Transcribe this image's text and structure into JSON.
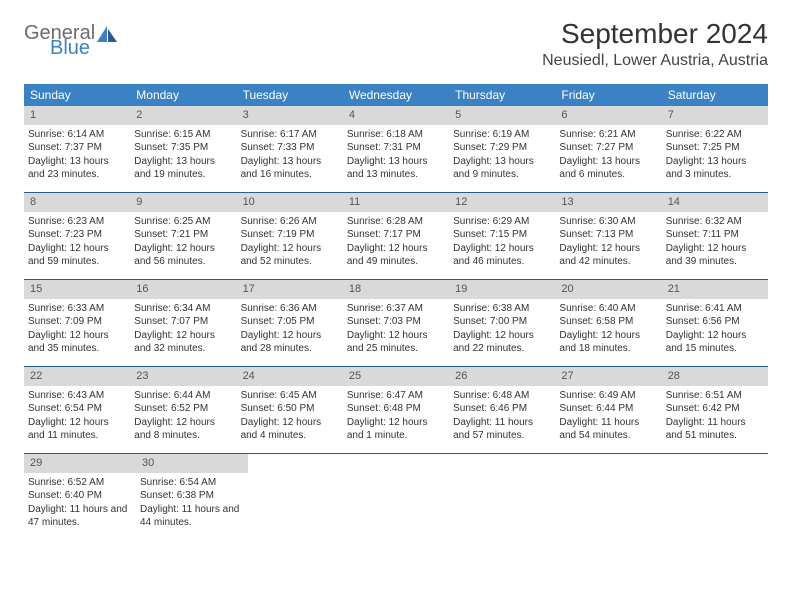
{
  "logo": {
    "word1": "General",
    "word2": "Blue",
    "color_gray": "#6c6c6c",
    "color_blue": "#3b82c4"
  },
  "title": "September 2024",
  "location": "Neusiedl, Lower Austria, Austria",
  "calendar": {
    "header_bg": "#3b82c4",
    "header_text_color": "#ffffff",
    "daynum_bg": "#d9d9d9",
    "border_color": "#2c5a8a",
    "weekdays": [
      "Sunday",
      "Monday",
      "Tuesday",
      "Wednesday",
      "Thursday",
      "Friday",
      "Saturday"
    ],
    "days": [
      {
        "n": 1,
        "sunrise": "6:14 AM",
        "sunset": "7:37 PM",
        "daylight": "13 hours and 23 minutes."
      },
      {
        "n": 2,
        "sunrise": "6:15 AM",
        "sunset": "7:35 PM",
        "daylight": "13 hours and 19 minutes."
      },
      {
        "n": 3,
        "sunrise": "6:17 AM",
        "sunset": "7:33 PM",
        "daylight": "13 hours and 16 minutes."
      },
      {
        "n": 4,
        "sunrise": "6:18 AM",
        "sunset": "7:31 PM",
        "daylight": "13 hours and 13 minutes."
      },
      {
        "n": 5,
        "sunrise": "6:19 AM",
        "sunset": "7:29 PM",
        "daylight": "13 hours and 9 minutes."
      },
      {
        "n": 6,
        "sunrise": "6:21 AM",
        "sunset": "7:27 PM",
        "daylight": "13 hours and 6 minutes."
      },
      {
        "n": 7,
        "sunrise": "6:22 AM",
        "sunset": "7:25 PM",
        "daylight": "13 hours and 3 minutes."
      },
      {
        "n": 8,
        "sunrise": "6:23 AM",
        "sunset": "7:23 PM",
        "daylight": "12 hours and 59 minutes."
      },
      {
        "n": 9,
        "sunrise": "6:25 AM",
        "sunset": "7:21 PM",
        "daylight": "12 hours and 56 minutes."
      },
      {
        "n": 10,
        "sunrise": "6:26 AM",
        "sunset": "7:19 PM",
        "daylight": "12 hours and 52 minutes."
      },
      {
        "n": 11,
        "sunrise": "6:28 AM",
        "sunset": "7:17 PM",
        "daylight": "12 hours and 49 minutes."
      },
      {
        "n": 12,
        "sunrise": "6:29 AM",
        "sunset": "7:15 PM",
        "daylight": "12 hours and 46 minutes."
      },
      {
        "n": 13,
        "sunrise": "6:30 AM",
        "sunset": "7:13 PM",
        "daylight": "12 hours and 42 minutes."
      },
      {
        "n": 14,
        "sunrise": "6:32 AM",
        "sunset": "7:11 PM",
        "daylight": "12 hours and 39 minutes."
      },
      {
        "n": 15,
        "sunrise": "6:33 AM",
        "sunset": "7:09 PM",
        "daylight": "12 hours and 35 minutes."
      },
      {
        "n": 16,
        "sunrise": "6:34 AM",
        "sunset": "7:07 PM",
        "daylight": "12 hours and 32 minutes."
      },
      {
        "n": 17,
        "sunrise": "6:36 AM",
        "sunset": "7:05 PM",
        "daylight": "12 hours and 28 minutes."
      },
      {
        "n": 18,
        "sunrise": "6:37 AM",
        "sunset": "7:03 PM",
        "daylight": "12 hours and 25 minutes."
      },
      {
        "n": 19,
        "sunrise": "6:38 AM",
        "sunset": "7:00 PM",
        "daylight": "12 hours and 22 minutes."
      },
      {
        "n": 20,
        "sunrise": "6:40 AM",
        "sunset": "6:58 PM",
        "daylight": "12 hours and 18 minutes."
      },
      {
        "n": 21,
        "sunrise": "6:41 AM",
        "sunset": "6:56 PM",
        "daylight": "12 hours and 15 minutes."
      },
      {
        "n": 22,
        "sunrise": "6:43 AM",
        "sunset": "6:54 PM",
        "daylight": "12 hours and 11 minutes."
      },
      {
        "n": 23,
        "sunrise": "6:44 AM",
        "sunset": "6:52 PM",
        "daylight": "12 hours and 8 minutes."
      },
      {
        "n": 24,
        "sunrise": "6:45 AM",
        "sunset": "6:50 PM",
        "daylight": "12 hours and 4 minutes."
      },
      {
        "n": 25,
        "sunrise": "6:47 AM",
        "sunset": "6:48 PM",
        "daylight": "12 hours and 1 minute."
      },
      {
        "n": 26,
        "sunrise": "6:48 AM",
        "sunset": "6:46 PM",
        "daylight": "11 hours and 57 minutes."
      },
      {
        "n": 27,
        "sunrise": "6:49 AM",
        "sunset": "6:44 PM",
        "daylight": "11 hours and 54 minutes."
      },
      {
        "n": 28,
        "sunrise": "6:51 AM",
        "sunset": "6:42 PM",
        "daylight": "11 hours and 51 minutes."
      },
      {
        "n": 29,
        "sunrise": "6:52 AM",
        "sunset": "6:40 PM",
        "daylight": "11 hours and 47 minutes."
      },
      {
        "n": 30,
        "sunrise": "6:54 AM",
        "sunset": "6:38 PM",
        "daylight": "11 hours and 44 minutes."
      }
    ]
  }
}
